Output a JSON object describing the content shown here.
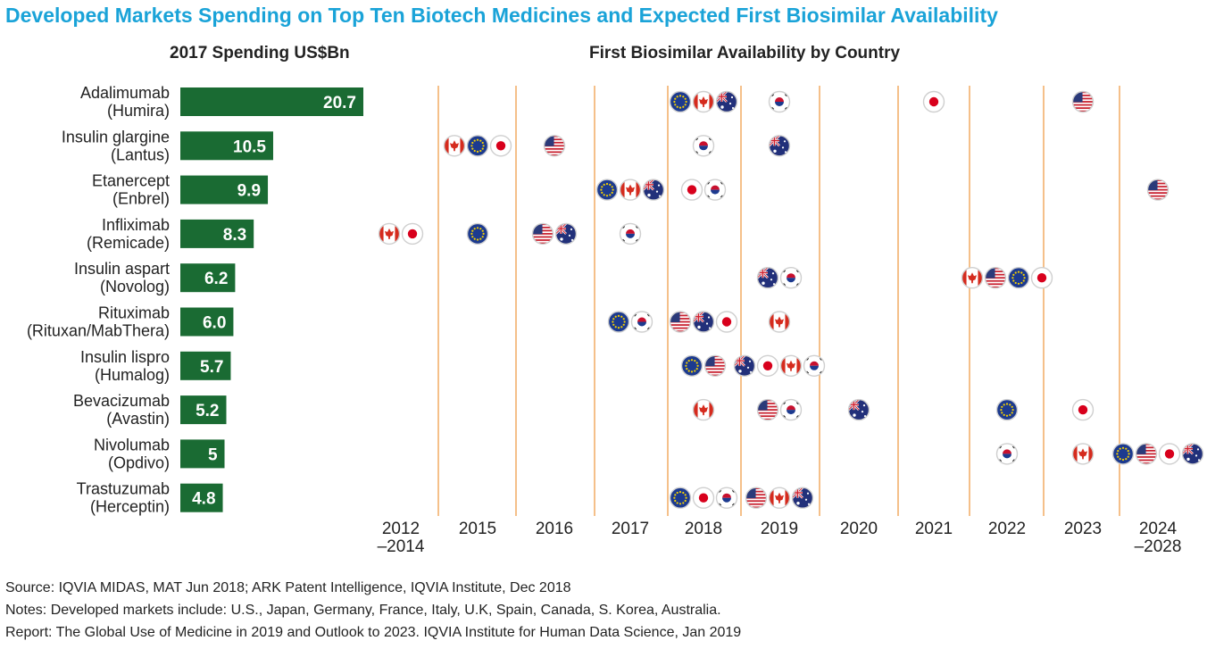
{
  "title": "Developed Markets Spending on Top Ten Biotech Medicines and Expected First Biosimilar Availability",
  "chart_data": [
    {
      "type": "bar",
      "title": "2017 Spending US$Bn",
      "categories": [
        [
          "Adalimumab",
          "(Humira)"
        ],
        [
          "Insulin glargine",
          "(Lantus)"
        ],
        [
          "Etanercept",
          "(Enbrel)"
        ],
        [
          "Infliximab",
          "(Remicade)"
        ],
        [
          "Insulin aspart",
          "(Novolog)"
        ],
        [
          "Rituximab",
          "(Rituxan/MabThera)"
        ],
        [
          "Insulin lispro",
          "(Humalog)"
        ],
        [
          "Bevacizumab",
          "(Avastin)"
        ],
        [
          "Nivolumab",
          "(Opdivo)"
        ],
        [
          "Trastuzumab",
          "(Herceptin)"
        ]
      ],
      "values": [
        20.7,
        10.5,
        9.9,
        8.3,
        6.2,
        6.0,
        5.7,
        5.2,
        5,
        4.8
      ],
      "value_labels": [
        "20.7",
        "10.5",
        "9.9",
        "8.3",
        "6.2",
        "6.0",
        "5.7",
        "5.2",
        "5",
        "4.8"
      ],
      "bar_color": "#1a6b33",
      "xlim": [
        0,
        20.7
      ]
    },
    {
      "type": "scatter",
      "title": "First Biosimilar Availability by Country",
      "periods": [
        [
          "2012",
          "–2014"
        ],
        [
          "2015"
        ],
        [
          "2016"
        ],
        [
          "2017"
        ],
        [
          "2018"
        ],
        [
          "2019"
        ],
        [
          "2020"
        ],
        [
          "2021"
        ],
        [
          "2022"
        ],
        [
          "2023"
        ],
        [
          "2024",
          "–2028"
        ]
      ],
      "divider_color": "#f5c08a",
      "rows": [
        [
          [
            4,
            [
              "EU",
              "CA",
              "AU"
            ]
          ],
          [
            5,
            [
              "KR"
            ]
          ],
          [
            7,
            [
              "JP"
            ]
          ],
          [
            9,
            [
              "US"
            ]
          ]
        ],
        [
          [
            1,
            [
              "CA",
              "EU",
              "JP"
            ]
          ],
          [
            2,
            [
              "US"
            ]
          ],
          [
            4,
            [
              "KR"
            ]
          ],
          [
            5,
            [
              "AU"
            ]
          ]
        ],
        [
          [
            3,
            [
              "EU",
              "CA",
              "AU"
            ]
          ],
          [
            4,
            [
              "JP",
              "KR"
            ]
          ],
          [
            10,
            [
              "US"
            ]
          ]
        ],
        [
          [
            0,
            [
              "CA",
              "JP"
            ]
          ],
          [
            1,
            [
              "EU"
            ]
          ],
          [
            2,
            [
              "US",
              "AU"
            ]
          ],
          [
            3,
            [
              "KR"
            ]
          ]
        ],
        [
          [
            5,
            [
              "AU",
              "KR"
            ]
          ],
          [
            8,
            [
              "CA",
              "US",
              "EU",
              "JP"
            ]
          ]
        ],
        [
          [
            3,
            [
              "EU",
              "KR"
            ]
          ],
          [
            4,
            [
              "US",
              "AU",
              "JP"
            ]
          ],
          [
            5,
            [
              "CA"
            ]
          ]
        ],
        [
          [
            4,
            [
              "EU",
              "US"
            ]
          ],
          [
            5,
            [
              "AU",
              "JP",
              "CA",
              "KR"
            ]
          ]
        ],
        [
          [
            4,
            [
              "CA"
            ]
          ],
          [
            5,
            [
              "US",
              "KR"
            ]
          ],
          [
            6,
            [
              "AU"
            ]
          ],
          [
            8,
            [
              "EU"
            ]
          ],
          [
            9,
            [
              "JP"
            ]
          ]
        ],
        [
          [
            8,
            [
              "KR"
            ]
          ],
          [
            9,
            [
              "CA"
            ]
          ],
          [
            10,
            [
              "EU",
              "US",
              "JP",
              "AU"
            ]
          ]
        ],
        [
          [
            4,
            [
              "EU",
              "JP",
              "KR"
            ]
          ],
          [
            5,
            [
              "US",
              "CA",
              "AU"
            ]
          ]
        ]
      ],
      "country_flags": {
        "US": "us-flag-icon",
        "EU": "eu-flag-icon",
        "CA": "canada-flag-icon",
        "JP": "japan-flag-icon",
        "KR": "south-korea-flag-icon",
        "AU": "australia-flag-icon"
      }
    }
  ],
  "footer": {
    "source": "Source: IQVIA MIDAS, MAT Jun 2018; ARK Patent Intelligence, IQVIA Institute, Dec 2018",
    "notes": "Notes: Developed markets include: U.S., Japan, Germany, France, Italy, U.K, Spain, Canada, S. Korea, Australia.",
    "report": "Report: The Global Use of Medicine in 2019 and Outlook to 2023. IQVIA Institute for Human Data Science, Jan 2019"
  }
}
